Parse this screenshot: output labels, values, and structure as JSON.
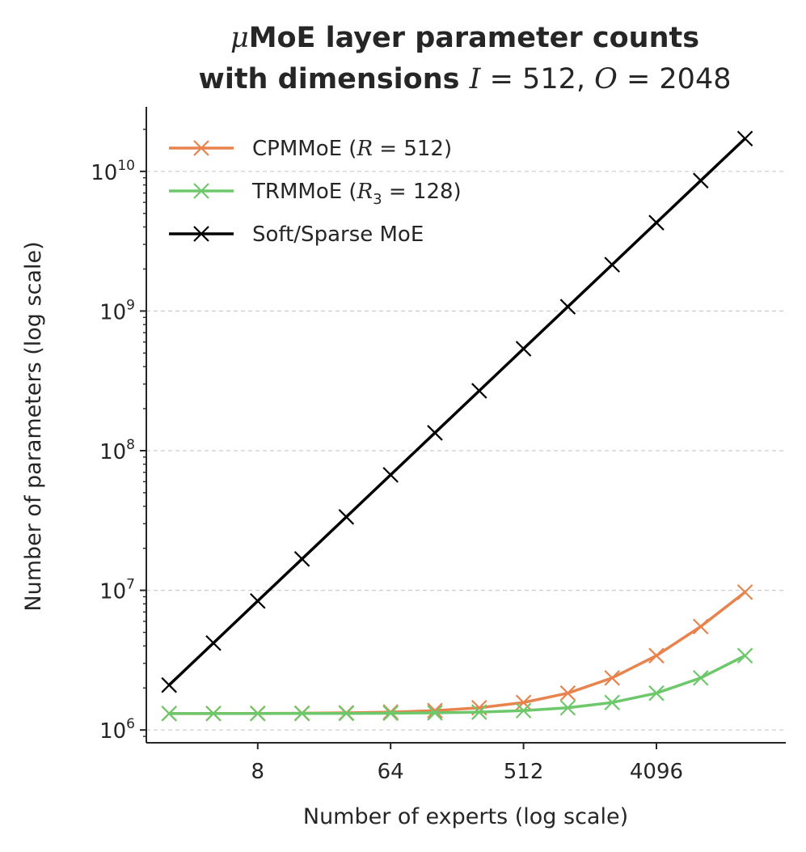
{
  "chart_data": {
    "type": "line",
    "title_line1_symbol": "μ",
    "title_line1_text": "MoE layer parameter counts",
    "title_line2_text": "with dimensions",
    "title_line2_var1": "I",
    "title_line2_eq1": " = 512, ",
    "title_line2_var2": "O",
    "title_line2_eq2": " = 2048",
    "xlabel": "Number of experts (log scale)",
    "ylabel": "Number of parameters (log scale)",
    "xscale": "log2",
    "yscale": "log10",
    "xlim": [
      1.4,
      31000
    ],
    "ylim": [
      810000,
      29000000000
    ],
    "xticks": [
      {
        "value": 8,
        "label": "8"
      },
      {
        "value": 64,
        "label": "64"
      },
      {
        "value": 512,
        "label": "512"
      },
      {
        "value": 4096,
        "label": "4096"
      }
    ],
    "yticks": [
      {
        "value": 1000000,
        "base": "10",
        "exp": "6"
      },
      {
        "value": 10000000,
        "base": "10",
        "exp": "7"
      },
      {
        "value": 100000000,
        "base": "10",
        "exp": "8"
      },
      {
        "value": 1000000000,
        "base": "10",
        "exp": "9"
      },
      {
        "value": 10000000000,
        "base": "10",
        "exp": "10"
      }
    ],
    "grid": "horizontal-dashed",
    "legend_position": "top-left",
    "x": [
      2,
      4,
      8,
      16,
      32,
      64,
      128,
      256,
      512,
      1024,
      2048,
      4096,
      8192,
      16384
    ],
    "series": [
      {
        "name": "CPMMoE",
        "legend_prefix": "CPMMoE (",
        "legend_var": "R",
        "legend_sub": "",
        "legend_suffix": " = 512)",
        "color": "#e8834d",
        "values": [
          1311744,
          1312768,
          1314816,
          1318912,
          1327104,
          1343488,
          1376256,
          1441792,
          1572864,
          1835008,
          2359296,
          3407872,
          5505024,
          9699328
        ]
      },
      {
        "name": "TRMMoE",
        "legend_prefix": "TRMMoE (",
        "legend_var": "R",
        "legend_sub": "3",
        "legend_suffix": " = 128)",
        "color": "#6cc86a",
        "values": [
          1310976,
          1311232,
          1311744,
          1312768,
          1314816,
          1318912,
          1327104,
          1343488,
          1376256,
          1441792,
          1572864,
          1835008,
          2359296,
          3407872
        ]
      },
      {
        "name": "Soft/Sparse MoE",
        "legend_prefix": "Soft/Sparse MoE",
        "legend_var": "",
        "legend_sub": "",
        "legend_suffix": "",
        "color": "#000000",
        "values": [
          2097152,
          4194304,
          8388608,
          16777216,
          33554432,
          67108864,
          134217728,
          268435456,
          536870912,
          1073741824,
          2147483648,
          4294967296,
          8589934592,
          17179869184
        ]
      }
    ]
  }
}
